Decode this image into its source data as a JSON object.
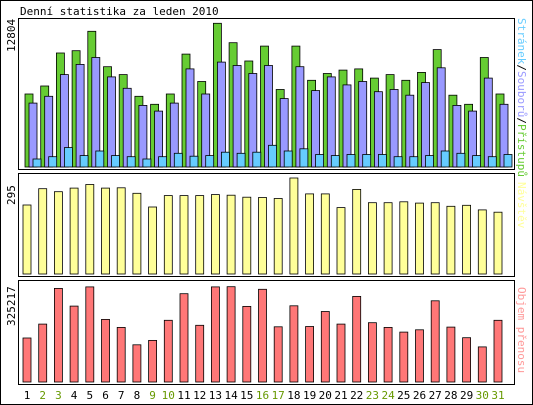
{
  "title": "Denní statistika za leden 2010",
  "days": [
    "1",
    "2",
    "3",
    "4",
    "5",
    "6",
    "7",
    "8",
    "9",
    "10",
    "11",
    "12",
    "13",
    "14",
    "15",
    "16",
    "17",
    "18",
    "19",
    "20",
    "21",
    "22",
    "23",
    "24",
    "25",
    "26",
    "27",
    "28",
    "29",
    "30",
    "31"
  ],
  "weekend_days": [
    "2",
    "3",
    "9",
    "10",
    "16",
    "17",
    "23",
    "24",
    "30",
    "31"
  ],
  "colors": {
    "pristupu": "#66cc33",
    "souboru": "#9999ff",
    "stranek": "#66ccff",
    "navstev": "#ffff99",
    "objem": "#ff7777",
    "weekday_label": "#000000",
    "weekend_label": "#669900"
  },
  "panels": {
    "top": {
      "max_label": "12804",
      "legend": [
        {
          "text": "Stránek",
          "color": "#66ccff"
        },
        {
          "text": "/",
          "color": "#000000"
        },
        {
          "text": "Souborů",
          "color": "#9999ff"
        },
        {
          "text": "/",
          "color": "#000000"
        },
        {
          "text": "Přístupů",
          "color": "#66cc33"
        }
      ]
    },
    "mid": {
      "max_label": "295",
      "legend": [
        {
          "text": "Návštěv",
          "color": "#ffff99"
        }
      ]
    },
    "bot": {
      "max_label": "325217",
      "legend": [
        {
          "text": "Objem přenosu",
          "color": "#ff9999"
        }
      ]
    }
  },
  "chart_data": [
    {
      "type": "bar",
      "title": "Denní statistika za leden 2010",
      "categories": [
        "1",
        "2",
        "3",
        "4",
        "5",
        "6",
        "7",
        "8",
        "9",
        "10",
        "11",
        "12",
        "13",
        "14",
        "15",
        "16",
        "17",
        "18",
        "19",
        "20",
        "21",
        "22",
        "23",
        "24",
        "25",
        "26",
        "27",
        "28",
        "29",
        "30",
        "31"
      ],
      "ylim": [
        0,
        12804
      ],
      "series": [
        {
          "name": "Přístupů",
          "values": [
            6400,
            7100,
            10000,
            10200,
            11900,
            8800,
            8100,
            6200,
            5500,
            6400,
            9900,
            7500,
            12600,
            10900,
            9300,
            10600,
            6800,
            10600,
            7600,
            8200,
            8500,
            8600,
            7800,
            8100,
            7600,
            8300,
            10300,
            6300,
            5500,
            9600,
            6400
          ]
        },
        {
          "name": "Souborů",
          "values": [
            5600,
            6200,
            8100,
            9000,
            9600,
            7900,
            6900,
            5400,
            4900,
            5600,
            8600,
            6400,
            9200,
            8900,
            8200,
            8900,
            6000,
            8800,
            6700,
            7900,
            7200,
            7500,
            6600,
            6800,
            6300,
            7400,
            8700,
            5400,
            4900,
            7800,
            5500
          ]
        },
        {
          "name": "Stránek",
          "values": [
            700,
            900,
            1700,
            1000,
            1400,
            1000,
            900,
            700,
            900,
            1200,
            950,
            1000,
            1300,
            1200,
            1300,
            1900,
            1400,
            1600,
            1100,
            1000,
            1100,
            1100,
            1100,
            900,
            900,
            1000,
            1400,
            1200,
            1000,
            900,
            1100
          ]
        }
      ]
    },
    {
      "type": "bar",
      "categories": [
        "1",
        "2",
        "3",
        "4",
        "5",
        "6",
        "7",
        "8",
        "9",
        "10",
        "11",
        "12",
        "13",
        "14",
        "15",
        "16",
        "17",
        "18",
        "19",
        "20",
        "21",
        "22",
        "23",
        "24",
        "25",
        "26",
        "27",
        "28",
        "29",
        "30",
        "31"
      ],
      "ylim": [
        0,
        295
      ],
      "series": [
        {
          "name": "Návštěv",
          "values": [
            212,
            262,
            253,
            264,
            275,
            264,
            265,
            248,
            206,
            241,
            241,
            241,
            244,
            242,
            236,
            235,
            232,
            295,
            246,
            246,
            204,
            260,
            219,
            219,
            222,
            218,
            219,
            208,
            211,
            197,
            190
          ]
        }
      ]
    },
    {
      "type": "bar",
      "categories": [
        "1",
        "2",
        "3",
        "4",
        "5",
        "6",
        "7",
        "8",
        "9",
        "10",
        "11",
        "12",
        "13",
        "14",
        "15",
        "16",
        "17",
        "18",
        "19",
        "20",
        "21",
        "22",
        "23",
        "24",
        "25",
        "26",
        "27",
        "28",
        "29",
        "30",
        "31"
      ],
      "ylim": [
        0,
        325217
      ],
      "series": [
        {
          "name": "Objem přenosu",
          "values": [
            149000,
            196000,
            317000,
            257000,
            322000,
            212000,
            185000,
            126000,
            141000,
            209000,
            299000,
            192000,
            322000,
            323000,
            256000,
            314000,
            187000,
            258000,
            188000,
            239000,
            196000,
            290000,
            201000,
            185000,
            169000,
            177000,
            275000,
            186000,
            150000,
            119000,
            209000
          ]
        }
      ]
    }
  ]
}
